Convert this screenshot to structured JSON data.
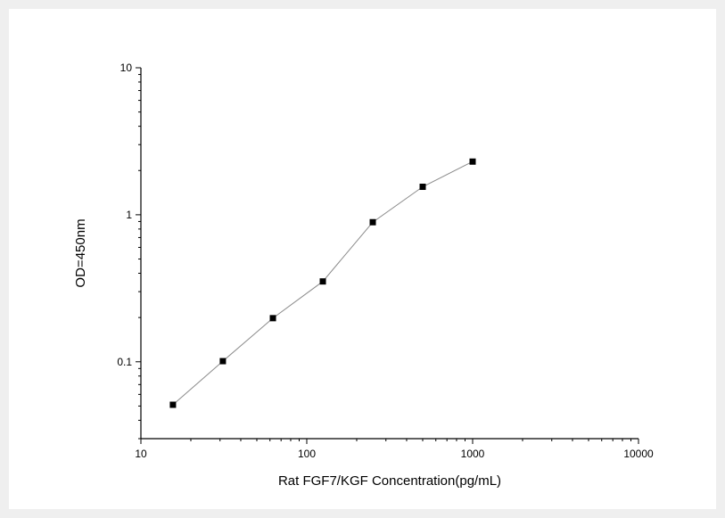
{
  "chart_data": {
    "type": "line",
    "title": "",
    "xlabel": "Rat FGF7/KGF Concentration(pg/mL)",
    "ylabel": "OD=450nm",
    "x_scale": "log",
    "y_scale": "log",
    "xlim": [
      10,
      10000
    ],
    "ylim": [
      0.03,
      10
    ],
    "x_ticks": [
      10,
      100,
      1000,
      10000
    ],
    "x_tick_labels": [
      "10",
      "100",
      "1000",
      "10000"
    ],
    "y_ticks": [
      0.1,
      1,
      10
    ],
    "y_tick_labels": [
      "0.1",
      "1",
      "10"
    ],
    "grid": false,
    "legend": "none",
    "series": [
      {
        "x": [
          15.6,
          31.2,
          62.5,
          125,
          250,
          500,
          1000
        ],
        "y": [
          0.051,
          0.101,
          0.198,
          0.352,
          0.89,
          1.55,
          2.3
        ],
        "marker": "square",
        "marker_color": "#000000",
        "line_color": "#8a8a8a"
      }
    ]
  }
}
